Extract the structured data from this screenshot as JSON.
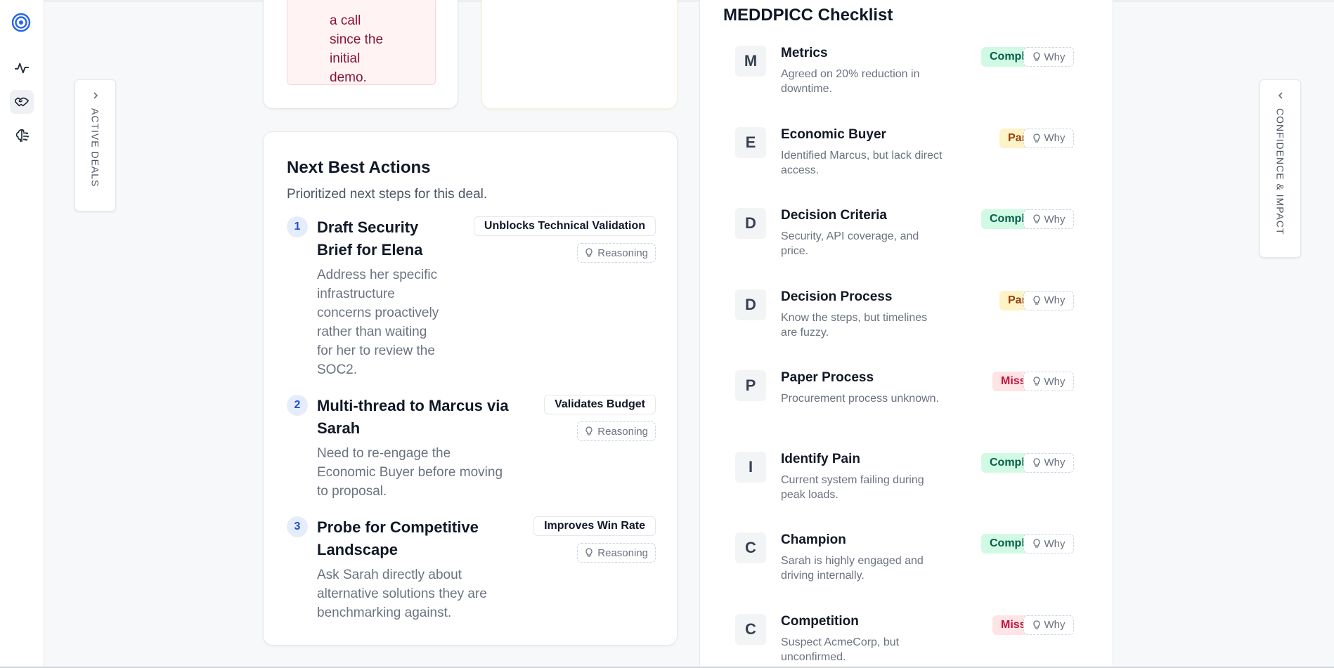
{
  "sidebar": {
    "items": [
      {
        "icon": "target-icon"
      },
      {
        "icon": "activity-icon"
      },
      {
        "icon": "handshake-icon"
      },
      {
        "icon": "brain-icon"
      }
    ]
  },
  "left_panel": {
    "label": "ACTIVE DEALS",
    "icon": "chevron-right-icon"
  },
  "right_panel": {
    "label": "CONFIDENCE & IMPACT",
    "icon": "chevron-left-icon"
  },
  "risk_card": {
    "text": "a call\nsince the\ninitial\ndemo."
  },
  "next_best_actions": {
    "title": "Next Best Actions",
    "subtitle": "Prioritized next steps for this deal.",
    "reasoning_label": "Reasoning",
    "items": [
      {
        "num": "1",
        "title": "Draft Security\nBrief for Elena",
        "desc": "Address her specific\ninfrastructure\nconcerns proactively\nrather than waiting\nfor her to review the\nSOC2.",
        "impact": "Unblocks Technical Validation"
      },
      {
        "num": "2",
        "title": "Multi-thread to Marcus via\nSarah",
        "desc": "Need to re-engage the\nEconomic Buyer before moving\nto proposal.",
        "impact": "Validates Budget"
      },
      {
        "num": "3",
        "title": "Probe for Competitive\nLandscape",
        "desc": "Ask Sarah directly about\nalternative solutions they are\nbenchmarking against.",
        "impact": "Improves Win Rate"
      }
    ]
  },
  "meddpicc": {
    "title": "MEDDPICC Checklist",
    "why_label": "Why",
    "items": [
      {
        "letter": "M",
        "name": "Metrics",
        "desc": "Agreed on 20% reduction in downtime.",
        "status": "Complete"
      },
      {
        "letter": "E",
        "name": "Economic Buyer",
        "desc": "Identified Marcus, but lack direct access.",
        "status": "Partial"
      },
      {
        "letter": "D",
        "name": "Decision Criteria",
        "desc": "Security, API coverage, and price.",
        "status": "Complete"
      },
      {
        "letter": "D",
        "name": "Decision Process",
        "desc": "Know the steps, but timelines are fuzzy.",
        "status": "Partial"
      },
      {
        "letter": "P",
        "name": "Paper Process",
        "desc": "Procurement process unknown.",
        "status": "Missing"
      },
      {
        "letter": "I",
        "name": "Identify Pain",
        "desc": "Current system failing during peak loads.",
        "status": "Complete"
      },
      {
        "letter": "C",
        "name": "Champion",
        "desc": "Sarah is highly engaged and driving internally.",
        "status": "Complete"
      },
      {
        "letter": "C",
        "name": "Competition",
        "desc": "Suspect AcmeCorp, but unconfirmed.",
        "status": "Missing"
      }
    ]
  },
  "colors": {
    "accent": "#1d4ed8",
    "complete": "#065f46",
    "partial": "#92400e",
    "missing": "#be123c"
  }
}
